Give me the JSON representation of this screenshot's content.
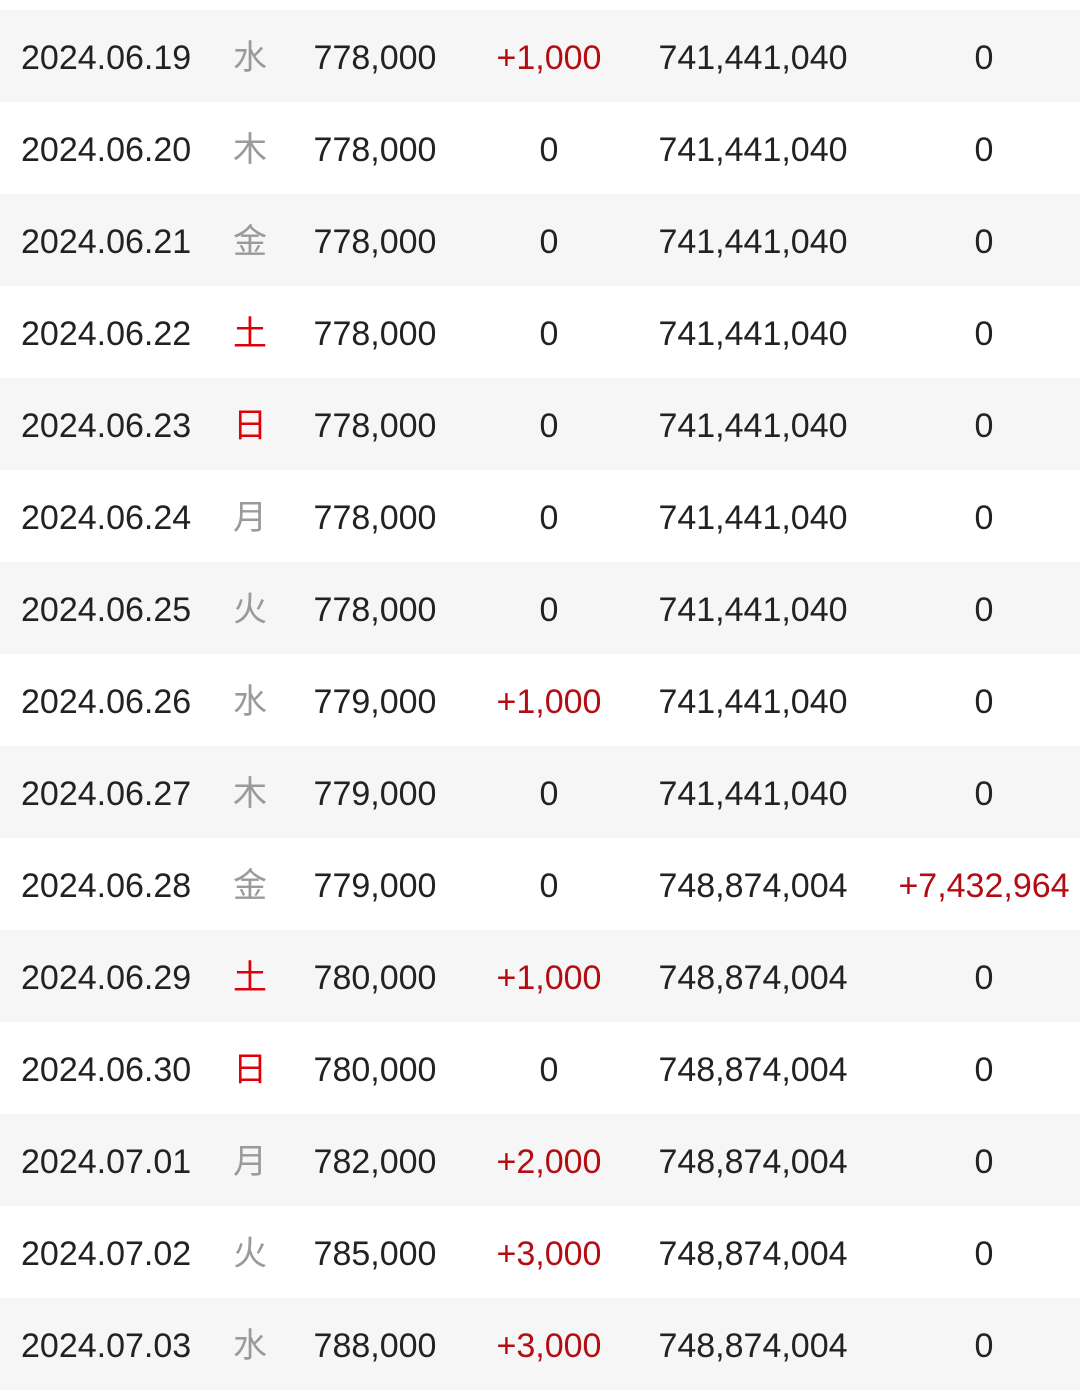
{
  "colors": {
    "text": "#222222",
    "weekday": "#9a9a9a",
    "weekend": "#e0000a",
    "increase": "#b30d14",
    "row_shade": "#f6f6f6"
  },
  "rows": [
    {
      "date": "2024.06.19",
      "day": "水",
      "price": "778,000",
      "change": "+1,000",
      "total": "741,441,040",
      "total_change": "0"
    },
    {
      "date": "2024.06.20",
      "day": "木",
      "price": "778,000",
      "change": "0",
      "total": "741,441,040",
      "total_change": "0"
    },
    {
      "date": "2024.06.21",
      "day": "金",
      "price": "778,000",
      "change": "0",
      "total": "741,441,040",
      "total_change": "0"
    },
    {
      "date": "2024.06.22",
      "day": "土",
      "price": "778,000",
      "change": "0",
      "total": "741,441,040",
      "total_change": "0"
    },
    {
      "date": "2024.06.23",
      "day": "日",
      "price": "778,000",
      "change": "0",
      "total": "741,441,040",
      "total_change": "0"
    },
    {
      "date": "2024.06.24",
      "day": "月",
      "price": "778,000",
      "change": "0",
      "total": "741,441,040",
      "total_change": "0"
    },
    {
      "date": "2024.06.25",
      "day": "火",
      "price": "778,000",
      "change": "0",
      "total": "741,441,040",
      "total_change": "0"
    },
    {
      "date": "2024.06.26",
      "day": "水",
      "price": "779,000",
      "change": "+1,000",
      "total": "741,441,040",
      "total_change": "0"
    },
    {
      "date": "2024.06.27",
      "day": "木",
      "price": "779,000",
      "change": "0",
      "total": "741,441,040",
      "total_change": "0"
    },
    {
      "date": "2024.06.28",
      "day": "金",
      "price": "779,000",
      "change": "0",
      "total": "748,874,004",
      "total_change": "+7,432,964"
    },
    {
      "date": "2024.06.29",
      "day": "土",
      "price": "780,000",
      "change": "+1,000",
      "total": "748,874,004",
      "total_change": "0"
    },
    {
      "date": "2024.06.30",
      "day": "日",
      "price": "780,000",
      "change": "0",
      "total": "748,874,004",
      "total_change": "0"
    },
    {
      "date": "2024.07.01",
      "day": "月",
      "price": "782,000",
      "change": "+2,000",
      "total": "748,874,004",
      "total_change": "0"
    },
    {
      "date": "2024.07.02",
      "day": "火",
      "price": "785,000",
      "change": "+3,000",
      "total": "748,874,004",
      "total_change": "0"
    },
    {
      "date": "2024.07.03",
      "day": "水",
      "price": "788,000",
      "change": "+3,000",
      "total": "748,874,004",
      "total_change": "0"
    }
  ]
}
